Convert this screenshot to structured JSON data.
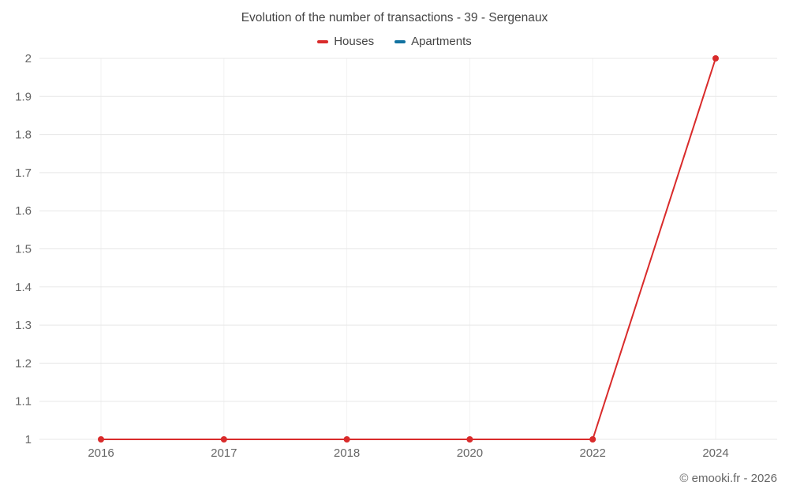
{
  "chart": {
    "title": "Evolution of the number of transactions - 39 - Sergenaux",
    "footer": "© emooki.fr - 2026"
  },
  "chart_data": {
    "type": "line",
    "categories": [
      "2016",
      "2017",
      "2018",
      "2020",
      "2022",
      "2024"
    ],
    "series": [
      {
        "name": "Houses",
        "color": "#d92b2b",
        "values": [
          1,
          1,
          1,
          1,
          1,
          2
        ]
      },
      {
        "name": "Apartments",
        "color": "#1272a0",
        "values": []
      }
    ],
    "ylim": [
      1,
      2
    ],
    "ytick_step": 0.1,
    "grid": true,
    "legend_position": "top",
    "xlabel": "",
    "ylabel": ""
  }
}
